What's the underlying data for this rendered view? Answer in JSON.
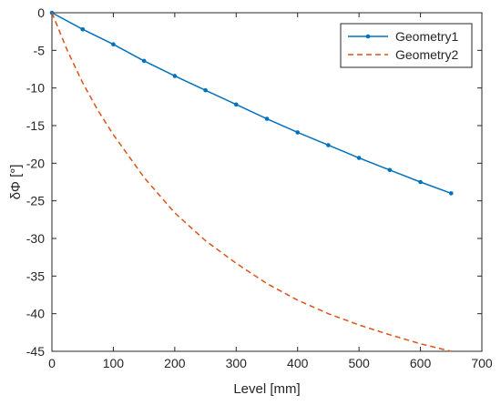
{
  "chart_data": {
    "type": "line",
    "xlabel": "Level [mm]",
    "ylabel": "δΦ [°]",
    "xlim": [
      0,
      700
    ],
    "ylim": [
      -45,
      0
    ],
    "xticks": [
      0,
      100,
      200,
      300,
      400,
      500,
      600,
      700
    ],
    "yticks": [
      0,
      -5,
      -10,
      -15,
      -20,
      -25,
      -30,
      -35,
      -40,
      -45
    ],
    "grid": false,
    "legend_position": "top-right",
    "series": [
      {
        "name": "Geometry1",
        "color": "#0072BD",
        "line_style": "solid",
        "marker": "dot",
        "x": [
          0,
          50,
          100,
          150,
          200,
          250,
          300,
          350,
          400,
          450,
          500,
          550,
          600,
          650
        ],
        "y": [
          0,
          -2.2,
          -4.2,
          -6.4,
          -8.4,
          -10.3,
          -12.2,
          -14.1,
          -15.9,
          -17.6,
          -19.3,
          -20.9,
          -22.5,
          -24.0
        ]
      },
      {
        "name": "Geometry2",
        "color": "#D95319",
        "line_style": "dashed",
        "marker": "none",
        "x": [
          0,
          25,
          50,
          75,
          100,
          150,
          200,
          250,
          300,
          350,
          400,
          450,
          500,
          550,
          600,
          650
        ],
        "y": [
          0,
          -5.0,
          -9.3,
          -13.0,
          -16.2,
          -21.9,
          -26.6,
          -30.3,
          -33.3,
          -36.0,
          -38.2,
          -40.0,
          -41.5,
          -42.8,
          -44.0,
          -45.0
        ]
      }
    ]
  }
}
